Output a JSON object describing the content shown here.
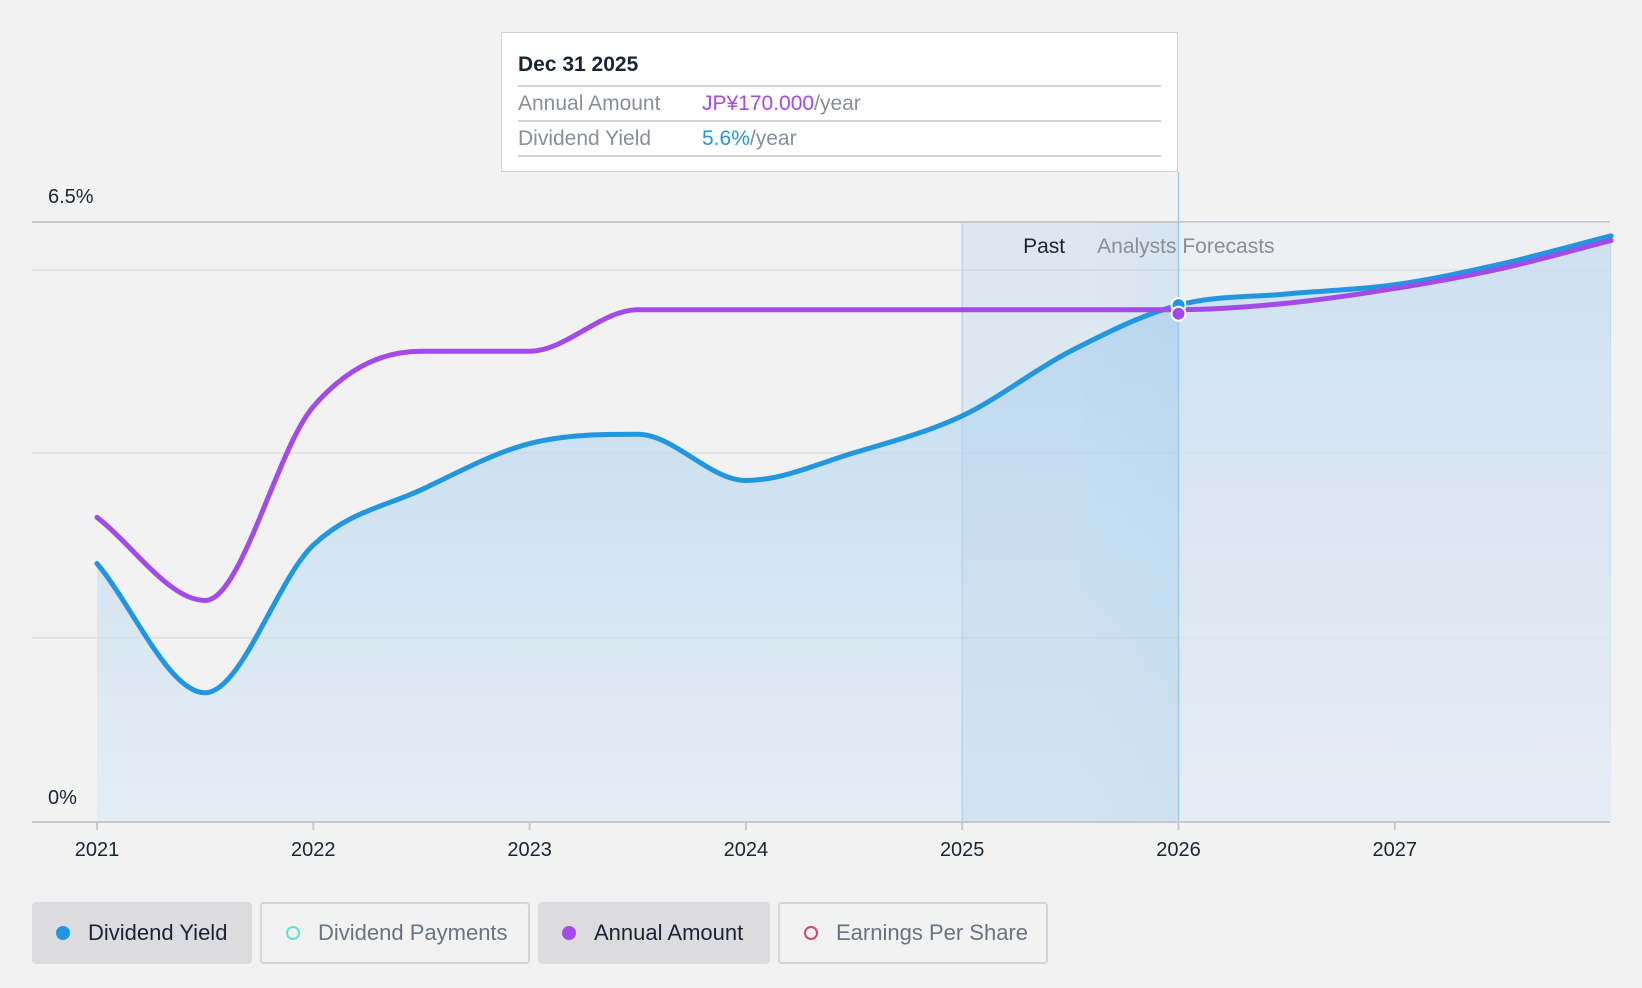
{
  "chart_data": {
    "type": "line",
    "x_ticks": [
      "2021",
      "2022",
      "2023",
      "2024",
      "2025",
      "2026",
      "2027"
    ],
    "y_ticks": [
      "0%",
      "6.5%"
    ],
    "ylim": [
      0,
      6.5
    ],
    "grid": true,
    "regions": {
      "past_label": "Past",
      "forecast_label": "Analysts Forecasts",
      "forecast_start": 2025.55
    },
    "series": [
      {
        "name": "Dividend Yield",
        "color": "#2396e0",
        "filled": true,
        "points": [
          [
            2021.0,
            2.8
          ],
          [
            2021.5,
            1.4
          ],
          [
            2022.0,
            3.0
          ],
          [
            2022.5,
            3.6
          ],
          [
            2023.0,
            4.1
          ],
          [
            2023.5,
            4.2
          ],
          [
            2024.0,
            3.7
          ],
          [
            2024.5,
            4.0
          ],
          [
            2025.0,
            4.4
          ],
          [
            2025.5,
            5.1
          ],
          [
            2026.0,
            5.6
          ],
          [
            2026.5,
            5.72
          ],
          [
            2027.0,
            5.82
          ],
          [
            2027.5,
            6.05
          ],
          [
            2028.0,
            6.35
          ]
        ]
      },
      {
        "name": "Annual Amount",
        "color": "#a24be8",
        "filled": false,
        "points": [
          [
            2021.0,
            3.3
          ],
          [
            2021.5,
            2.4
          ],
          [
            2022.0,
            4.5
          ],
          [
            2022.5,
            5.1
          ],
          [
            2023.0,
            5.1
          ],
          [
            2023.5,
            5.55
          ],
          [
            2025.0,
            5.55
          ],
          [
            2026.0,
            5.55
          ],
          [
            2026.5,
            5.62
          ],
          [
            2027.0,
            5.78
          ],
          [
            2027.5,
            6.0
          ],
          [
            2028.0,
            6.3
          ]
        ]
      }
    ],
    "tooltip": {
      "date": "Dec 31 2025",
      "rows": [
        {
          "label": "Annual Amount",
          "value": "JP¥170.000",
          "unit": "/year"
        },
        {
          "label": "Dividend Yield",
          "value": "5.6%",
          "unit": "/year"
        }
      ]
    },
    "highlight_x": 2026.0
  },
  "legend": [
    {
      "label": "Dividend Yield",
      "color": "#2396e0",
      "active": true,
      "filled": true
    },
    {
      "label": "Dividend Payments",
      "color": "#5ee0d8",
      "active": false,
      "filled": false
    },
    {
      "label": "Annual Amount",
      "color": "#a24be8",
      "active": true,
      "filled": true
    },
    {
      "label": "Earnings Per Share",
      "color": "#d0467c",
      "active": false,
      "filled": false
    }
  ]
}
